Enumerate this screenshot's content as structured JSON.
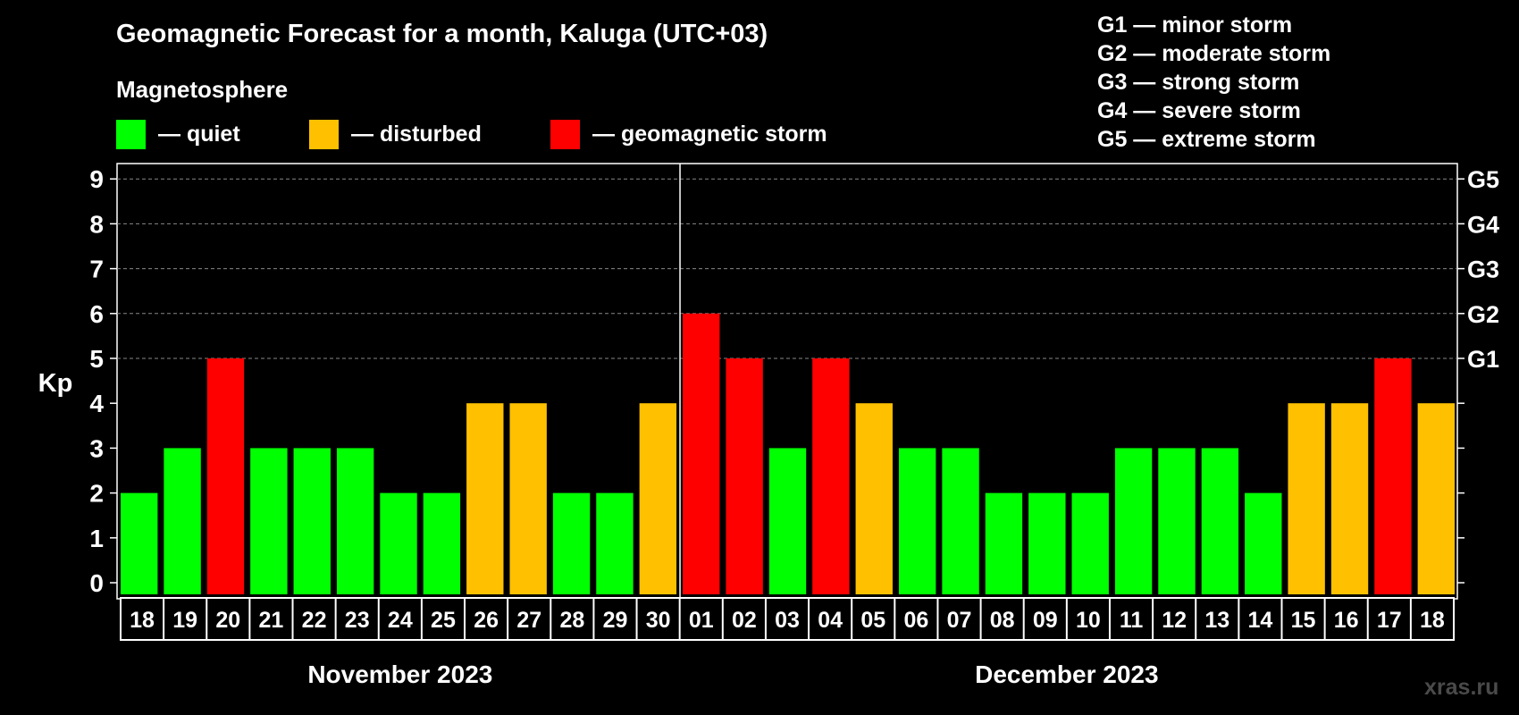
{
  "chart_data": {
    "type": "bar",
    "title": "Geomagnetic Forecast for a month, Kaluga (UTC+03)",
    "subtitle": "Magnetosphere",
    "ylabel": "Kp",
    "ylim": [
      0,
      9
    ],
    "yticks": [
      "0",
      "1",
      "2",
      "3",
      "4",
      "5",
      "6",
      "7",
      "8",
      "9"
    ],
    "right_ticks": [
      {
        "kp": 5,
        "label": "G1"
      },
      {
        "kp": 6,
        "label": "G2"
      },
      {
        "kp": 7,
        "label": "G3"
      },
      {
        "kp": 8,
        "label": "G4"
      },
      {
        "kp": 9,
        "label": "G5"
      }
    ],
    "categories": [
      "18",
      "19",
      "20",
      "21",
      "22",
      "23",
      "24",
      "25",
      "26",
      "27",
      "28",
      "29",
      "30",
      "01",
      "02",
      "03",
      "04",
      "05",
      "06",
      "07",
      "08",
      "09",
      "10",
      "11",
      "12",
      "13",
      "14",
      "15",
      "16",
      "17",
      "18"
    ],
    "values": [
      2,
      3,
      5,
      3,
      3,
      3,
      2,
      2,
      4,
      4,
      2,
      2,
      4,
      6,
      5,
      3,
      5,
      4,
      3,
      3,
      2,
      2,
      2,
      3,
      3,
      3,
      2,
      4,
      4,
      5,
      4
    ],
    "months": [
      {
        "label": "November 2023",
        "start_index": 0,
        "end_index": 12
      },
      {
        "label": "December 2023",
        "start_index": 13,
        "end_index": 30
      }
    ],
    "legend": [
      {
        "label": "— quiet",
        "color": "#00ff00"
      },
      {
        "label": "— disturbed",
        "color": "#ffc000"
      },
      {
        "label": "— geomagnetic storm",
        "color": "#ff0000"
      }
    ],
    "colors": {
      "quiet": "#00ff00",
      "disturbed": "#ffc000",
      "storm": "#ff0000"
    },
    "g_scale": [
      "G1 — minor storm",
      "G2 — moderate storm",
      "G3 — strong storm",
      "G4 — severe storm",
      "G5 — extreme storm"
    ]
  },
  "watermark": "xras.ru"
}
